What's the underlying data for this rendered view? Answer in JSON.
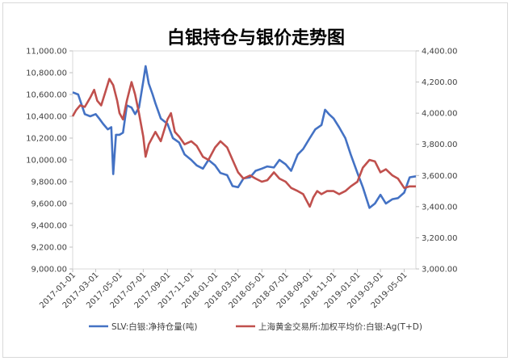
{
  "chart_data": {
    "type": "line",
    "title": "白银持仓与银价走势图",
    "xlabel": "",
    "ylabel_left": "",
    "ylabel_right": "",
    "y_left_lim": [
      9000,
      11000
    ],
    "y_right_lim": [
      3000,
      4400
    ],
    "y_left_ticks": [
      "9,000.00",
      "9,200.00",
      "9,400.00",
      "9,600.00",
      "9,800.00",
      "10,000.00",
      "10,200.00",
      "10,400.00",
      "10,600.00",
      "10,800.00",
      "11,000.00"
    ],
    "y_right_ticks": [
      "3,000.00",
      "3,200.00",
      "3,400.00",
      "3,600.00",
      "3,800.00",
      "4,000.00",
      "4,200.00",
      "4,400.00"
    ],
    "x_ticks": [
      "2017-01-01",
      "2017-03-01",
      "2017-05-01",
      "2017-07-01",
      "2017-09-01",
      "2017-11-01",
      "2018-01-01",
      "2018-03-01",
      "2018-05-01",
      "2018-07-01",
      "2018-09-01",
      "2018-11-01",
      "2019-01-01",
      "2019-03-01",
      "2019-05-01"
    ],
    "x_range": [
      "2017-01-01",
      "2019-05-31"
    ],
    "legend_position": "bottom",
    "grid": false,
    "series": [
      {
        "name": "SLV:白银:净持仓量(吨)",
        "axis": "left",
        "color": "#4472C4",
        "points": [
          [
            "2017-01-01",
            10620
          ],
          [
            "2017-01-15",
            10600
          ],
          [
            "2017-02-01",
            10420
          ],
          [
            "2017-02-15",
            10400
          ],
          [
            "2017-03-01",
            10420
          ],
          [
            "2017-03-10",
            10380
          ],
          [
            "2017-03-20",
            10330
          ],
          [
            "2017-04-01",
            10280
          ],
          [
            "2017-04-10",
            10300
          ],
          [
            "2017-04-15",
            9870
          ],
          [
            "2017-04-22",
            10230
          ],
          [
            "2017-05-01",
            10230
          ],
          [
            "2017-05-10",
            10250
          ],
          [
            "2017-05-20",
            10500
          ],
          [
            "2017-06-01",
            10480
          ],
          [
            "2017-06-10",
            10420
          ],
          [
            "2017-06-20",
            10480
          ],
          [
            "2017-07-01",
            10720
          ],
          [
            "2017-07-07",
            10860
          ],
          [
            "2017-07-15",
            10700
          ],
          [
            "2017-07-25",
            10600
          ],
          [
            "2017-08-01",
            10520
          ],
          [
            "2017-08-15",
            10380
          ],
          [
            "2017-09-01",
            10330
          ],
          [
            "2017-09-15",
            10200
          ],
          [
            "2017-10-01",
            10160
          ],
          [
            "2017-10-15",
            10050
          ],
          [
            "2017-11-01",
            10000
          ],
          [
            "2017-11-15",
            9950
          ],
          [
            "2017-12-01",
            9920
          ],
          [
            "2017-12-15",
            10000
          ],
          [
            "2018-01-01",
            9950
          ],
          [
            "2018-01-15",
            9880
          ],
          [
            "2018-02-01",
            9860
          ],
          [
            "2018-02-15",
            9760
          ],
          [
            "2018-03-01",
            9750
          ],
          [
            "2018-03-15",
            9830
          ],
          [
            "2018-04-01",
            9840
          ],
          [
            "2018-04-15",
            9900
          ],
          [
            "2018-05-01",
            9920
          ],
          [
            "2018-05-15",
            9940
          ],
          [
            "2018-06-01",
            9930
          ],
          [
            "2018-06-15",
            10000
          ],
          [
            "2018-07-01",
            9960
          ],
          [
            "2018-07-15",
            9900
          ],
          [
            "2018-08-01",
            10050
          ],
          [
            "2018-08-15",
            10100
          ],
          [
            "2018-09-01",
            10200
          ],
          [
            "2018-09-15",
            10280
          ],
          [
            "2018-10-01",
            10320
          ],
          [
            "2018-10-10",
            10460
          ],
          [
            "2018-10-20",
            10420
          ],
          [
            "2018-11-01",
            10380
          ],
          [
            "2018-11-15",
            10300
          ],
          [
            "2018-12-01",
            10200
          ],
          [
            "2018-12-15",
            10050
          ],
          [
            "2019-01-01",
            9880
          ],
          [
            "2019-01-15",
            9750
          ],
          [
            "2019-02-01",
            9560
          ],
          [
            "2019-02-15",
            9600
          ],
          [
            "2019-03-01",
            9680
          ],
          [
            "2019-03-15",
            9600
          ],
          [
            "2019-04-01",
            9640
          ],
          [
            "2019-04-15",
            9650
          ],
          [
            "2019-05-01",
            9700
          ],
          [
            "2019-05-15",
            9840
          ],
          [
            "2019-05-31",
            9850
          ]
        ]
      },
      {
        "name": "上海黄金交易所:加权平均价:白银:Ag(T+D)",
        "axis": "right",
        "color": "#C0504D",
        "points": [
          [
            "2017-01-01",
            3980
          ],
          [
            "2017-01-10",
            4020
          ],
          [
            "2017-01-20",
            4050
          ],
          [
            "2017-02-01",
            4040
          ],
          [
            "2017-02-15",
            4100
          ],
          [
            "2017-02-25",
            4150
          ],
          [
            "2017-03-05",
            4080
          ],
          [
            "2017-03-15",
            4050
          ],
          [
            "2017-03-25",
            4130
          ],
          [
            "2017-04-05",
            4220
          ],
          [
            "2017-04-15",
            4180
          ],
          [
            "2017-04-25",
            4080
          ],
          [
            "2017-05-01",
            4000
          ],
          [
            "2017-05-10",
            3960
          ],
          [
            "2017-05-20",
            4080
          ],
          [
            "2017-06-01",
            4200
          ],
          [
            "2017-06-10",
            4120
          ],
          [
            "2017-06-20",
            4000
          ],
          [
            "2017-07-01",
            3850
          ],
          [
            "2017-07-07",
            3720
          ],
          [
            "2017-07-15",
            3800
          ],
          [
            "2017-08-01",
            3880
          ],
          [
            "2017-08-15",
            3820
          ],
          [
            "2017-09-01",
            3960
          ],
          [
            "2017-09-10",
            4000
          ],
          [
            "2017-09-20",
            3880
          ],
          [
            "2017-10-01",
            3850
          ],
          [
            "2017-10-15",
            3800
          ],
          [
            "2017-11-01",
            3820
          ],
          [
            "2017-11-15",
            3790
          ],
          [
            "2017-12-01",
            3720
          ],
          [
            "2017-12-15",
            3700
          ],
          [
            "2018-01-01",
            3780
          ],
          [
            "2018-01-15",
            3820
          ],
          [
            "2018-02-01",
            3780
          ],
          [
            "2018-02-15",
            3700
          ],
          [
            "2018-03-01",
            3620
          ],
          [
            "2018-03-15",
            3580
          ],
          [
            "2018-04-01",
            3600
          ],
          [
            "2018-04-15",
            3580
          ],
          [
            "2018-05-01",
            3560
          ],
          [
            "2018-05-15",
            3570
          ],
          [
            "2018-06-01",
            3620
          ],
          [
            "2018-06-15",
            3580
          ],
          [
            "2018-07-01",
            3560
          ],
          [
            "2018-07-15",
            3520
          ],
          [
            "2018-08-01",
            3500
          ],
          [
            "2018-08-15",
            3480
          ],
          [
            "2018-09-01",
            3400
          ],
          [
            "2018-09-10",
            3460
          ],
          [
            "2018-09-20",
            3500
          ],
          [
            "2018-10-01",
            3480
          ],
          [
            "2018-10-15",
            3500
          ],
          [
            "2018-11-01",
            3500
          ],
          [
            "2018-11-15",
            3480
          ],
          [
            "2018-12-01",
            3500
          ],
          [
            "2018-12-15",
            3530
          ],
          [
            "2019-01-01",
            3560
          ],
          [
            "2019-01-15",
            3650
          ],
          [
            "2019-02-01",
            3700
          ],
          [
            "2019-02-15",
            3690
          ],
          [
            "2019-03-01",
            3620
          ],
          [
            "2019-03-15",
            3640
          ],
          [
            "2019-04-01",
            3600
          ],
          [
            "2019-04-15",
            3580
          ],
          [
            "2019-05-01",
            3520
          ],
          [
            "2019-05-15",
            3530
          ],
          [
            "2019-05-31",
            3530
          ]
        ]
      }
    ]
  }
}
